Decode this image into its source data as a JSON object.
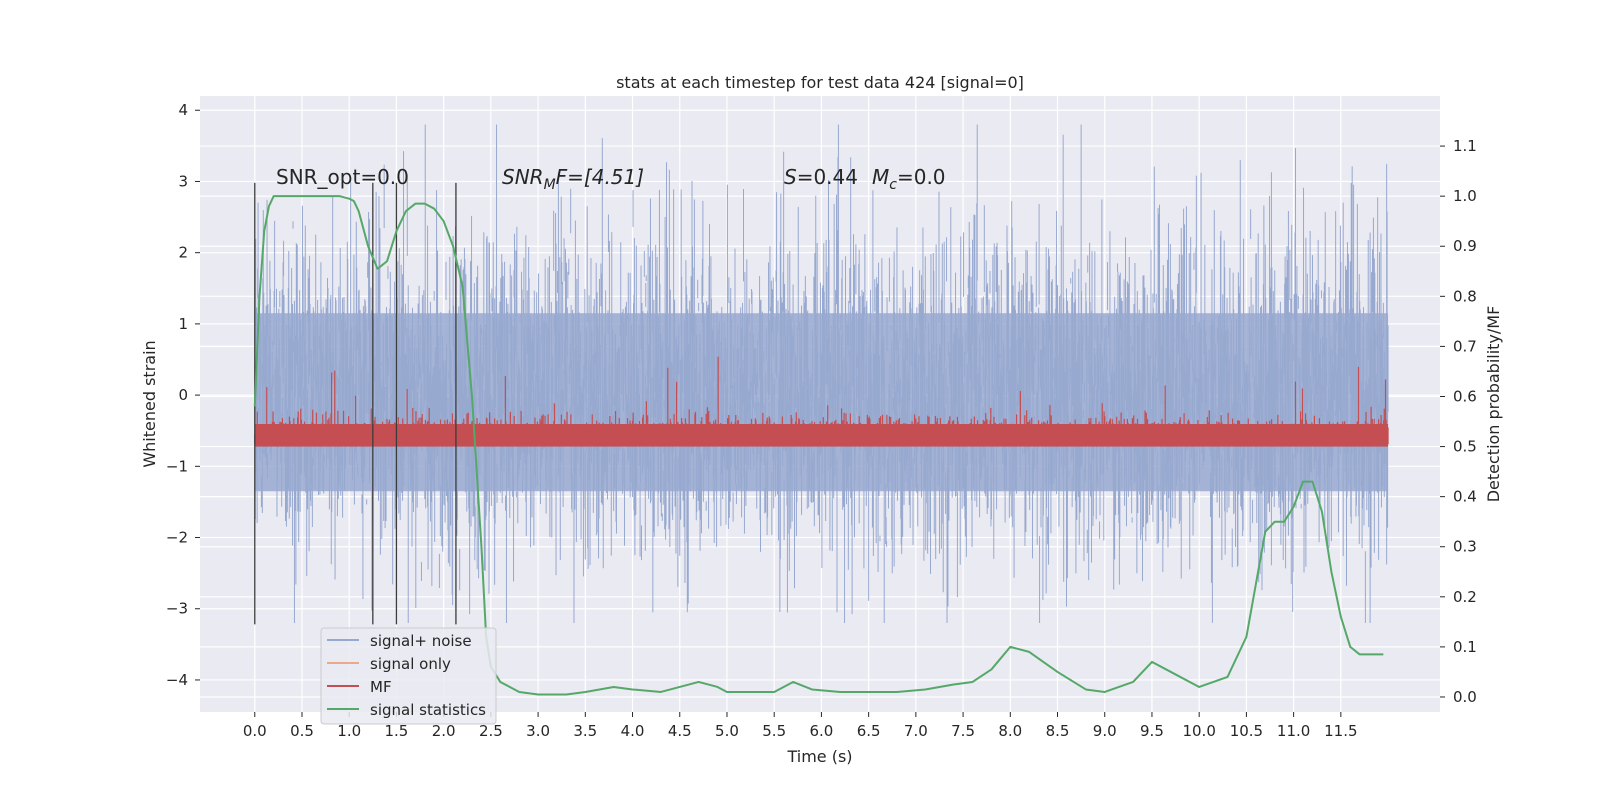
{
  "chart_data": {
    "type": "line",
    "title": "stats at each timestep for test data 424 [signal=0]",
    "xlabel": "Time (s)",
    "ylabel": "Whitened strain",
    "y2label": "Detection probability/MF",
    "xlim": [
      -0.58,
      12.55
    ],
    "ylim": [
      -4.45,
      4.2
    ],
    "y2lim": [
      -0.03,
      1.2
    ],
    "xticks": [
      0.0,
      0.5,
      1.0,
      1.5,
      2.0,
      2.5,
      3.0,
      3.5,
      4.0,
      4.5,
      5.0,
      5.5,
      6.0,
      6.5,
      7.0,
      7.5,
      8.0,
      8.5,
      9.0,
      9.5,
      10.0,
      10.5,
      11.0,
      11.5
    ],
    "xtick_labels": [
      "0.0",
      "0.5",
      "1.0",
      "1.5",
      "2.0",
      "2.5",
      "3.0",
      "3.5",
      "4.0",
      "4.5",
      "5.0",
      "5.5",
      "6.0",
      "6.5",
      "7.0",
      "7.5",
      "8.0",
      "8.5",
      "9.0",
      "9.5",
      "10.0",
      "10.5",
      "11.0",
      "11.5"
    ],
    "yticks": [
      -4,
      -3,
      -2,
      -1,
      0,
      1,
      2,
      3,
      4
    ],
    "ytick_labels": [
      "−4",
      "−3",
      "−2",
      "−1",
      "0",
      "1",
      "2",
      "3",
      "4"
    ],
    "y2ticks": [
      0.0,
      0.1,
      0.2,
      0.3,
      0.4,
      0.5,
      0.6,
      0.7,
      0.8,
      0.9,
      1.0,
      1.1
    ],
    "y2tick_labels": [
      "0.0",
      "0.1",
      "0.2",
      "0.3",
      "0.4",
      "0.5",
      "0.6",
      "0.7",
      "0.8",
      "0.9",
      "1.0",
      "1.1"
    ],
    "grid": true,
    "legend_position": "lower-left",
    "background": "#eaeaf2",
    "series": [
      {
        "name": "signal+ noise",
        "color": "#98a9d0",
        "axis": "left",
        "t_range": [
          0.0,
          12.0
        ],
        "envelope": [
          -3.2,
          3.8
        ],
        "description_values": "noise ~ N(0,1), peaks up to about ±3.8"
      },
      {
        "name": "signal only",
        "color": "#eaa98c",
        "axis": "left",
        "values": []
      },
      {
        "name": "MF",
        "color": "#c44e52",
        "axis": "right",
        "t_range": [
          0.0,
          12.0
        ],
        "typical_range": [
          0.5,
          0.6
        ],
        "peak": 0.68
      },
      {
        "name": "signal statistics",
        "color": "#55a868",
        "axis": "right",
        "x": [
          0.0,
          0.05,
          0.1,
          0.15,
          0.2,
          0.3,
          0.5,
          0.7,
          0.9,
          1.0,
          1.05,
          1.1,
          1.2,
          1.3,
          1.4,
          1.5,
          1.6,
          1.7,
          1.8,
          1.9,
          2.0,
          2.1,
          2.2,
          2.3,
          2.4,
          2.45,
          2.5,
          2.6,
          2.8,
          3.0,
          3.3,
          3.5,
          3.8,
          4.0,
          4.3,
          4.5,
          4.7,
          4.9,
          5.0,
          5.3,
          5.5,
          5.7,
          5.9,
          6.2,
          6.5,
          6.8,
          7.1,
          7.4,
          7.6,
          7.8,
          8.0,
          8.2,
          8.5,
          8.8,
          9.0,
          9.3,
          9.5,
          9.7,
          10.0,
          10.3,
          10.5,
          10.7,
          10.8,
          10.9,
          11.0,
          11.1,
          11.2,
          11.3,
          11.4,
          11.5,
          11.6,
          11.7,
          11.8,
          11.95
        ],
        "y": [
          0.58,
          0.8,
          0.93,
          0.98,
          1.0,
          1.0,
          1.0,
          1.0,
          1.0,
          0.995,
          0.99,
          0.97,
          0.9,
          0.855,
          0.87,
          0.93,
          0.97,
          0.985,
          0.985,
          0.975,
          0.95,
          0.9,
          0.82,
          0.6,
          0.3,
          0.12,
          0.06,
          0.03,
          0.01,
          0.005,
          0.005,
          0.01,
          0.02,
          0.015,
          0.01,
          0.02,
          0.03,
          0.02,
          0.01,
          0.01,
          0.01,
          0.03,
          0.015,
          0.01,
          0.01,
          0.01,
          0.015,
          0.025,
          0.03,
          0.055,
          0.1,
          0.09,
          0.05,
          0.015,
          0.01,
          0.03,
          0.07,
          0.05,
          0.02,
          0.04,
          0.12,
          0.33,
          0.35,
          0.35,
          0.38,
          0.43,
          0.43,
          0.37,
          0.25,
          0.16,
          0.1,
          0.085,
          0.085,
          0.085
        ]
      }
    ],
    "vertical_lines": [
      0.0,
      1.25,
      1.5,
      2.13
    ],
    "annotations": [
      {
        "id": "snr_opt",
        "text": "SNR_opt=0.0",
        "x": 0.2,
        "y": 3.05
      },
      {
        "id": "snr_mf",
        "text": "SNR_MF=[4.51]",
        "x": 2.6,
        "y": 3.05
      },
      {
        "id": "s_mc",
        "text": "S=0.44  M_c=0.0",
        "x": 5.6,
        "y": 3.05
      }
    ]
  },
  "annotation_text": {
    "snr_opt": "SNR_opt=0.0",
    "snr_mf_prefix": "SNR",
    "snr_mf_sub": "M",
    "snr_mf_rest": "F=[4.51]",
    "s_sym": "S",
    "s_val": "=0.44",
    "mc_sym": "M",
    "mc_sub": "c",
    "mc_val": "=0.0"
  }
}
